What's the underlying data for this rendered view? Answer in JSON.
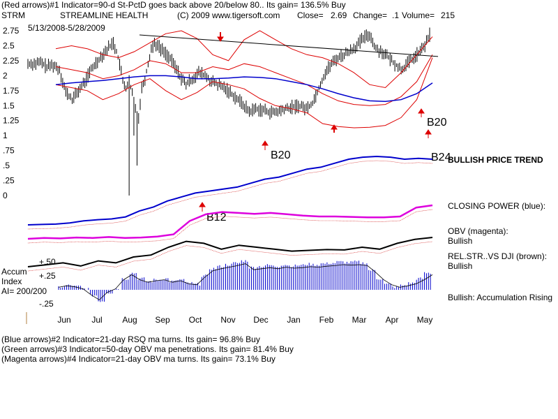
{
  "chart_data": {
    "type": "line",
    "header": {
      "line1": "(Red arrows)#1 Indicator=90-d St-PctD goes back above 20/below 80.. Its gain= 136.5% Buy",
      "ticker": "STRM",
      "company": "STREAMLINE HEALTH",
      "copyright": "(C) 2009 www.tigersoft.com",
      "close_label": "Close=",
      "close_value": "2.69",
      "change_label": "Change=",
      "change_value": ".1",
      "volume_label": "Volume=",
      "volume_value": "215",
      "date_range": "5/13/2008-5/28/2009"
    },
    "y_ticks": [
      "2.75",
      "2.5",
      "2.25",
      "2",
      "1.75",
      "1.5",
      "1.25",
      "1",
      ".75",
      ".5",
      ".25",
      "0"
    ],
    "y_tick_values": [
      2.75,
      2.5,
      2.25,
      2,
      1.75,
      1.5,
      1.25,
      1,
      0.75,
      0.5,
      0.25,
      0
    ],
    "x_ticks": [
      "Jun",
      "Jul",
      "Aug",
      "Sep",
      "Oct",
      "Nov",
      "Dec",
      "Jan",
      "Feb",
      "Mar",
      "Apr",
      "May"
    ],
    "price_scale": {
      "top_value": 2.75,
      "bottom_value": 0
    },
    "price_series": {
      "name": "STRM price",
      "color": "#000000",
      "x_index": [
        0,
        4,
        8,
        12,
        16,
        20,
        24,
        28,
        32,
        36,
        40,
        44,
        48,
        52,
        54,
        56,
        58,
        60,
        62,
        64,
        66,
        68,
        70,
        72,
        74,
        76,
        78,
        80,
        84,
        88,
        92,
        96,
        100,
        104,
        108,
        112,
        116,
        120,
        124,
        128,
        132,
        136,
        140,
        144,
        148,
        152,
        156,
        160,
        164,
        168,
        172,
        176,
        180,
        184,
        188,
        192,
        196,
        200,
        204,
        208,
        212,
        216,
        220,
        224,
        228,
        232,
        236,
        240,
        244,
        248,
        252,
        254
      ],
      "close": [
        2.2,
        2.2,
        2.22,
        2.15,
        2.18,
        2.1,
        1.72,
        1.6,
        1.75,
        1.9,
        2.1,
        2.25,
        2.38,
        2.5,
        2.55,
        2.4,
        2.2,
        1.9,
        1.8,
        1.9,
        1.7,
        1.45,
        1.3,
        1.8,
        1.95,
        2.2,
        2.45,
        2.55,
        2.45,
        2.35,
        2.2,
        2.0,
        1.85,
        1.95,
        2.05,
        2.0,
        1.9,
        1.85,
        1.8,
        1.72,
        1.62,
        1.52,
        1.4,
        1.45,
        1.43,
        1.4,
        1.38,
        1.42,
        1.45,
        1.48,
        1.5,
        1.45,
        1.55,
        1.8,
        2.05,
        2.2,
        2.3,
        2.35,
        2.42,
        2.5,
        2.62,
        2.69,
        2.45,
        2.4,
        2.3,
        2.2,
        2.1,
        2.2,
        2.3,
        2.4,
        2.55,
        2.69
      ]
    },
    "moving_averages": [
      {
        "name": "upper band",
        "color": "#dd0000",
        "values": [
          2.45,
          2.5,
          2.45,
          2.35,
          2.3,
          2.4,
          2.55,
          2.7,
          2.75,
          2.62,
          2.35,
          2.25,
          2.6,
          2.75,
          2.6,
          2.45,
          2.35,
          2.3,
          2.2,
          2.05,
          1.85,
          1.8,
          2.05,
          2.35,
          2.65
        ]
      },
      {
        "name": "lower band",
        "color": "#dd0000",
        "values": [
          1.85,
          1.8,
          1.75,
          1.6,
          1.7,
          1.85,
          1.95,
          1.75,
          1.6,
          1.72,
          1.9,
          1.85,
          1.78,
          1.62,
          1.5,
          1.45,
          1.38,
          1.2,
          1.15,
          1.13,
          1.14,
          1.17,
          1.3,
          1.6,
          2.3
        ]
      },
      {
        "name": "middle average",
        "color": "#dd0000",
        "values": [
          2.15,
          2.1,
          2.05,
          1.95,
          2.0,
          2.1,
          2.25,
          2.2,
          2.05,
          2.05,
          2.15,
          2.1,
          2.2,
          2.15,
          2.05,
          1.95,
          1.85,
          1.7,
          1.58,
          1.52,
          1.5,
          1.52,
          1.65,
          1.9,
          2.35
        ]
      },
      {
        "name": "200-day average",
        "color": "#0000cc",
        "values": [
          1.85,
          1.88,
          1.9,
          1.92,
          1.95,
          1.98,
          2.0,
          2.0,
          1.98,
          1.95,
          1.95,
          1.96,
          1.98,
          1.97,
          1.95,
          1.9,
          1.85,
          1.78,
          1.7,
          1.63,
          1.58,
          1.57,
          1.6,
          1.7,
          1.88
        ]
      }
    ],
    "trendline": {
      "name": "resistance line",
      "from": 2.68,
      "to": 2.32
    },
    "panels": [
      {
        "name": "Relative strength",
        "color": "#0000cc",
        "label": "BULLISH PRICE TREND",
        "values": [
          0.15,
          0.16,
          0.17,
          0.2,
          0.25,
          0.28,
          0.3,
          0.35,
          0.5,
          0.6,
          0.75,
          0.85,
          0.95,
          1.0,
          1.05,
          1.1,
          1.2,
          1.3,
          1.35,
          1.45,
          1.55,
          1.6,
          1.7,
          1.8,
          1.85,
          1.87,
          1.85,
          1.8,
          1.82,
          1.8
        ]
      },
      {
        "name": "Closing Power",
        "color": "#dd00dd",
        "label": "CLOSING POWER (blue):",
        "values": [
          0.2,
          0.22,
          0.21,
          0.23,
          0.22,
          0.24,
          0.22,
          0.23,
          0.25,
          0.3,
          0.6,
          0.75,
          0.8,
          0.78,
          0.76,
          0.78,
          0.75,
          0.72,
          0.7,
          0.7,
          0.69,
          0.68,
          0.68,
          0.7,
          0.9,
          0.95
        ]
      },
      {
        "name": "OBV",
        "color": "#000000",
        "label": "OBV (magenta):",
        "status": "Bullish",
        "values": [
          0.2,
          0.25,
          0.3,
          0.22,
          0.35,
          0.3,
          0.45,
          0.5,
          0.7,
          0.85,
          0.8,
          0.65,
          0.75,
          0.7,
          0.65,
          0.6,
          0.62,
          0.64,
          0.63,
          0.7,
          0.65,
          0.8,
          0.9,
          0.95
        ]
      }
    ],
    "rel_str_label": "REL.STR..VS DJI (brown):",
    "rel_str_status": "Bullish",
    "accum_panel": {
      "label_line1": "Accum",
      "label_line2": "Index",
      "label_line3": "AI= 200/200",
      "ticks": [
        "+.50",
        "+.25",
        "-.25"
      ],
      "tick_values": [
        0.5,
        0.25,
        -0.25
      ],
      "color": "#0000cc",
      "status_label": "Bullish: Accumulation Rising",
      "values": [
        0.05,
        0.08,
        0.06,
        0.02,
        -0.1,
        -0.2,
        -0.05,
        0.02,
        0.2,
        0.3,
        0.2,
        0.15,
        0.18,
        0.2,
        0.15,
        0.18,
        0.12,
        0.1,
        0.25,
        0.38,
        0.42,
        0.45,
        0.48,
        0.52,
        0.4,
        0.42,
        0.44,
        0.42,
        0.45,
        0.43,
        0.44,
        0.46,
        0.45,
        0.47,
        0.48,
        0.5,
        0.49,
        0.5,
        0.48,
        0.35,
        0.2,
        0.1,
        0.05,
        0.08,
        0.12,
        0.2,
        0.3
      ]
    },
    "annotations": [
      {
        "text": "B20",
        "panel": "price"
      },
      {
        "text": "B20",
        "panel": "price"
      },
      {
        "text": "B24",
        "panel": "price"
      },
      {
        "text": "B12",
        "panel": "closing"
      }
    ],
    "footer": [
      "(Blue arrows)#2 Indicator=21-day RSQ ma turns. Its gain= 96.8% Buy",
      "(Green arrows)#3 Indicator=50-day OBV ma penetrations. Its gain= 81.4% Buy",
      "(Magenta arrows)#4 Indicator=21-day OBV ma turns. Its gain= 73.1% Buy"
    ]
  }
}
